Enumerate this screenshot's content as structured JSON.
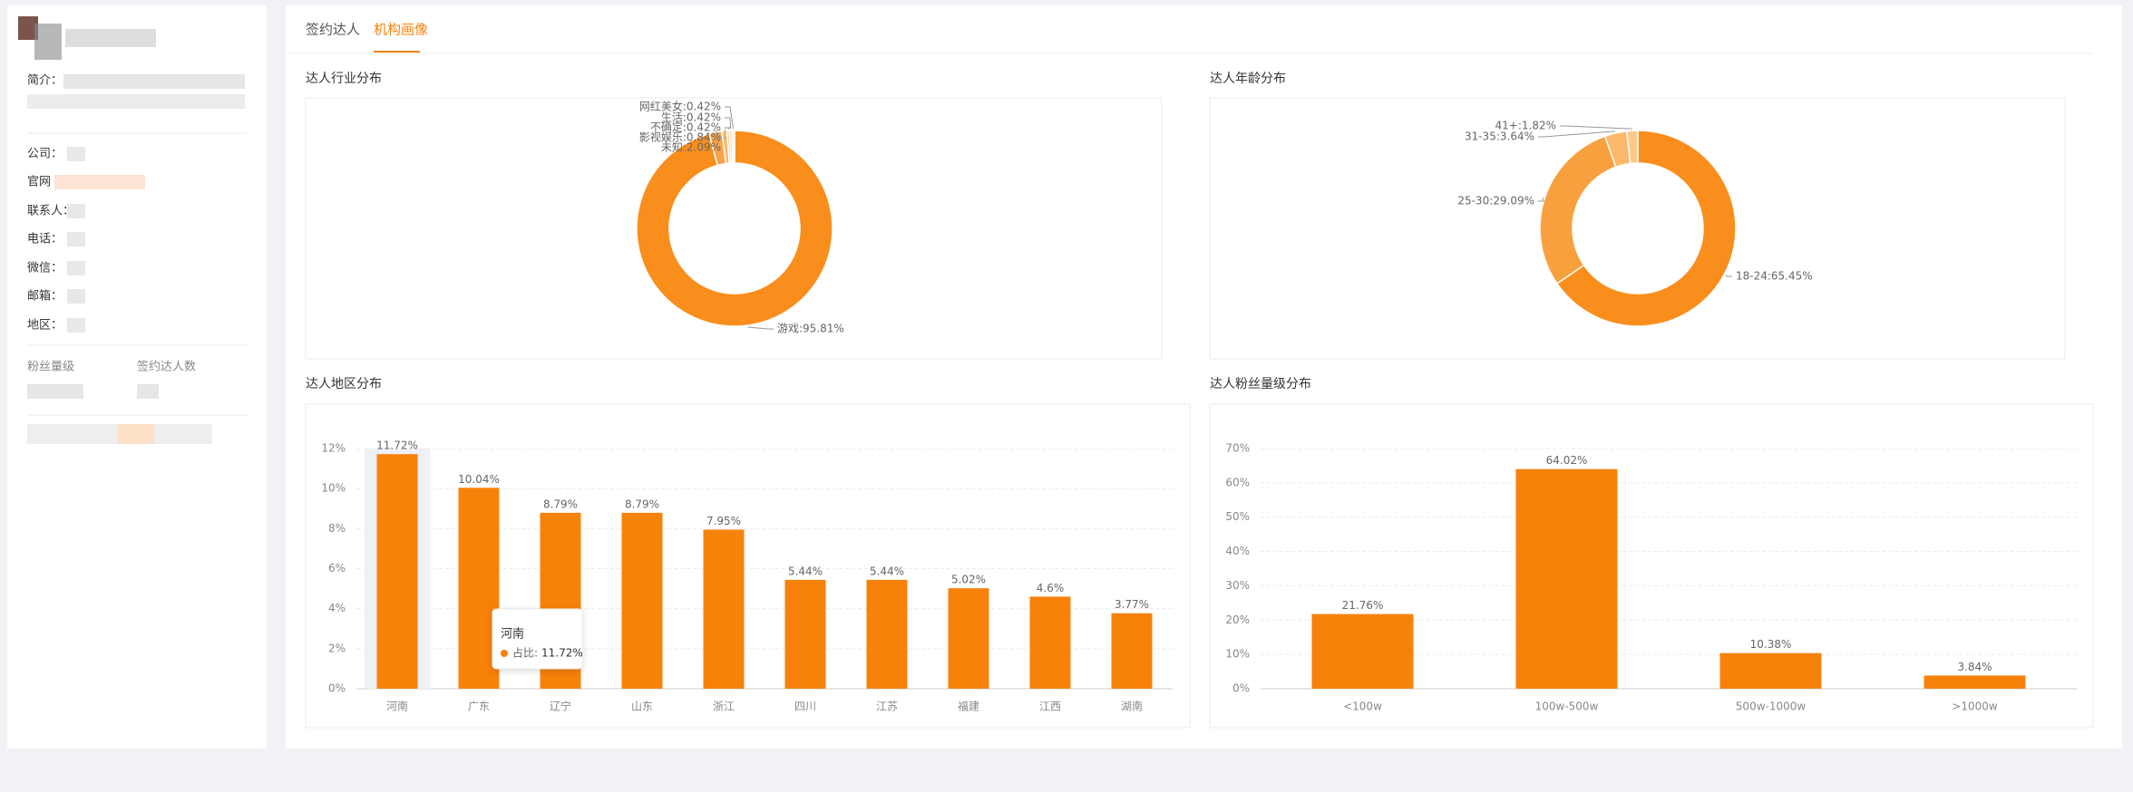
{
  "tabs": [
    "签约达人",
    "机构画像"
  ],
  "sidebar": {
    "labels": [
      "简介：",
      "公司：",
      "官网",
      "联系人：",
      "电话：",
      "微信：",
      "邮箱：",
      "地区："
    ],
    "stats": [
      "粉丝量级",
      "签约达人数"
    ]
  },
  "chart_data": [
    {
      "type": "pie",
      "title": "达人行业分布",
      "labels": [
        "游戏:95.81%",
        "未知:2.09%",
        "影视娱乐:0.84%",
        "不确定:0.42%",
        "生活:0.42%",
        "网红美女:0.42%"
      ],
      "values": [
        95.81,
        2.09,
        0.84,
        0.42,
        0.42,
        0.42
      ],
      "colors": [
        "#f98e1c",
        "#f9a44a",
        "#fbb86a",
        "#fcc98a",
        "#fdd9aa",
        "#fee6c4"
      ]
    },
    {
      "type": "pie",
      "title": "达人年龄分布",
      "labels": [
        "18-24:65.45%",
        "25-30:29.09%",
        "31-35:3.64%",
        "41+:1.82%"
      ],
      "values": [
        65.45,
        29.09,
        3.64,
        1.82
      ],
      "colors": [
        "#f98e1c",
        "#f9a03e",
        "#fbb86a",
        "#fcc98a"
      ]
    },
    {
      "type": "bar",
      "title": "达人地区分布",
      "categories": [
        "河南",
        "广东",
        "辽宁",
        "山东",
        "浙江",
        "四川",
        "江苏",
        "福建",
        "江西",
        "湖南"
      ],
      "values": [
        11.72,
        10.04,
        8.79,
        8.79,
        7.95,
        5.44,
        5.44,
        5.02,
        4.6,
        3.77
      ],
      "value_labels": [
        "11.72%",
        "10.04%",
        "8.79%",
        "8.79%",
        "7.95%",
        "5.44%",
        "5.44%",
        "5.02%",
        "4.6%",
        "3.77%"
      ],
      "color": "#f7820a",
      "ylim": [
        0,
        12
      ],
      "yticks": [
        {
          "value": 0,
          "label": "0%"
        },
        {
          "value": 2,
          "label": "2%"
        },
        {
          "value": 4,
          "label": "4%"
        },
        {
          "value": 6,
          "label": "6%"
        },
        {
          "value": 8,
          "label": "8%"
        },
        {
          "value": 10,
          "label": "10%"
        },
        {
          "value": 12,
          "label": "12%"
        }
      ],
      "grid": true,
      "tooltip": {
        "series": "占比:"
      }
    },
    {
      "type": "bar",
      "title": "达人粉丝量级分布",
      "categories": [
        "<100w",
        "100w-500w",
        "500w-1000w",
        ">1000w"
      ],
      "values": [
        21.76,
        64.02,
        10.38,
        3.84
      ],
      "value_labels": [
        "21.76%",
        "64.02%",
        "10.38%",
        "3.84%"
      ],
      "color": "#f7820a",
      "ylim": [
        0,
        70
      ],
      "yticks": [
        {
          "value": 0,
          "label": "0%"
        },
        {
          "value": 10,
          "label": "10%"
        },
        {
          "value": 20,
          "label": "20%"
        },
        {
          "value": 30,
          "label": "30%"
        },
        {
          "value": 40,
          "label": "40%"
        },
        {
          "value": 50,
          "label": "50%"
        },
        {
          "value": 60,
          "label": "60%"
        },
        {
          "value": 70,
          "label": "70%"
        }
      ],
      "grid": true
    }
  ]
}
